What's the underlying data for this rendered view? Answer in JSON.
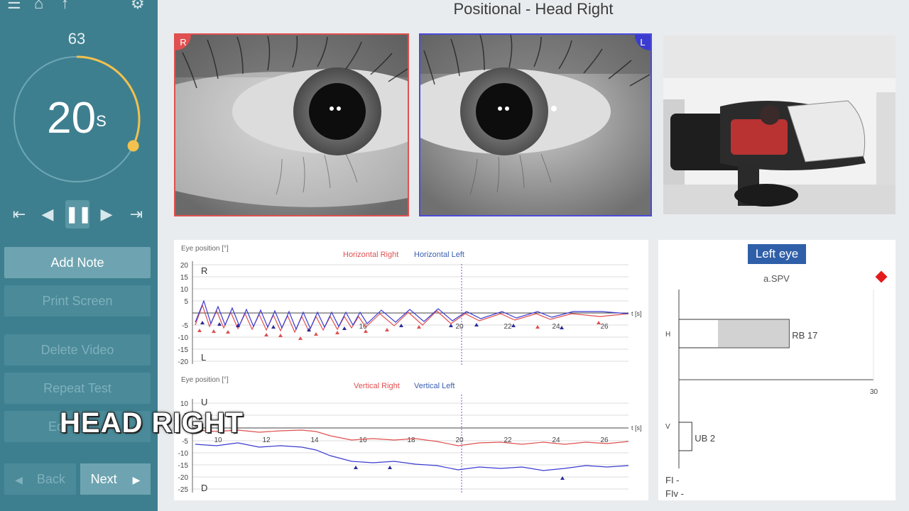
{
  "header": {
    "title": "Positional - Head Right"
  },
  "sidebar": {
    "timer": {
      "count": "63",
      "value": "20",
      "unit": "S",
      "progress": 0.32
    },
    "buttons": {
      "add_note": "Add Note",
      "print_screen": "Print Screen",
      "delete_video": "Delete Video",
      "repeat_test": "Repeat Test",
      "edit": "Ed"
    },
    "nav": {
      "back": "Back",
      "next": "Next"
    }
  },
  "video": {
    "right_label": "R",
    "left_label": "L"
  },
  "overlay_caption": "HEAD RIGHT",
  "charts": {
    "horizontal": {
      "ylabel": "Eye position [°]",
      "legend_right": "Horizontal Right",
      "legend_left": "Horizontal Left",
      "top_label": "R",
      "bottom_label": "L",
      "time_label": "t [s]",
      "yticks": [
        "20",
        "15",
        "10",
        "5",
        "-5",
        "-10",
        "-15",
        "-20"
      ],
      "xticks": [
        "16",
        "20",
        "22",
        "24",
        "26"
      ]
    },
    "vertical": {
      "ylabel": "Eye position [°]",
      "legend_right": "Vertical Right",
      "legend_left": "Vertical Left",
      "top_label": "U",
      "bottom_label": "D",
      "time_label": "t [s]",
      "yticks": [
        "10",
        "5",
        "-5",
        "-10",
        "-15",
        "-20",
        "-25"
      ],
      "xticks": [
        "10",
        "12",
        "14",
        "16",
        "18",
        "20",
        "22",
        "24",
        "26"
      ]
    }
  },
  "spv": {
    "title": "Left eye",
    "subtitle": "a.SPV",
    "h_label": "H",
    "v_label": "V",
    "rb_label": "RB 17",
    "ub_label": "UB 2",
    "axis_max": "30",
    "fi_label": "FI -",
    "fiv_label": "FIv -",
    "rb_value": 17,
    "ub_value": 2,
    "max": 30
  },
  "colors": {
    "sidebar": "#3e7f8f",
    "right_eye": "#e05050",
    "left_eye": "#3b3bd0",
    "timer_arc": "#f2c14e",
    "spv_badge": "#2f5fa8"
  }
}
